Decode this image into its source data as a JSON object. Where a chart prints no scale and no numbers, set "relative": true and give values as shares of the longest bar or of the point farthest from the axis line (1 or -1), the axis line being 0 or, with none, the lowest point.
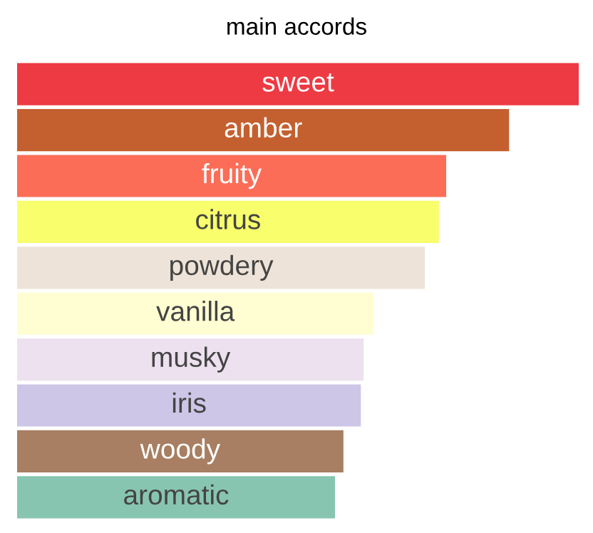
{
  "chart_data": {
    "type": "bar",
    "title": "main accords",
    "orientation": "horizontal",
    "relative": true,
    "categories": [
      "sweet",
      "amber",
      "fruity",
      "citrus",
      "powdery",
      "vanilla",
      "musky",
      "iris",
      "woody",
      "aromatic"
    ],
    "values": [
      1,
      0.876,
      0.764,
      0.751,
      0.726,
      0.635,
      0.617,
      0.612,
      0.581,
      0.566
    ],
    "colors": [
      "#ee3a43",
      "#c4602f",
      "#fc6d57",
      "#f9ff6c",
      "#eee3d8",
      "#fffed3",
      "#ede1ef",
      "#cdc6e7",
      "#a87f62",
      "#88c5b0"
    ]
  }
}
